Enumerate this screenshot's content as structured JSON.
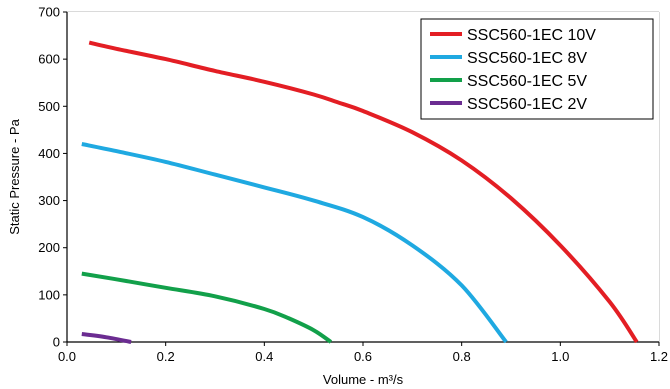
{
  "chart_data": {
    "type": "line",
    "title": "",
    "xlabel": "Volume - m³/s",
    "ylabel": "Static Pressure - Pa",
    "xlim": [
      0,
      1.2
    ],
    "ylim": [
      0,
      700
    ],
    "xticks": [
      "0.0",
      "0.2",
      "0.4",
      "0.6",
      "0.8",
      "1.0",
      "1.2"
    ],
    "yticks": [
      "0",
      "100",
      "200",
      "300",
      "400",
      "500",
      "600",
      "700"
    ],
    "grid": true,
    "legend_position": "top-right",
    "series": [
      {
        "name": "SSC560-1EC 10V",
        "color": "#e31e24",
        "points": [
          [
            0.045,
            635
          ],
          [
            0.1,
            622
          ],
          [
            0.2,
            600
          ],
          [
            0.3,
            575
          ],
          [
            0.4,
            552
          ],
          [
            0.5,
            525
          ],
          [
            0.55,
            508
          ],
          [
            0.6,
            490
          ],
          [
            0.7,
            445
          ],
          [
            0.8,
            385
          ],
          [
            0.9,
            305
          ],
          [
            1.0,
            205
          ],
          [
            1.1,
            85
          ],
          [
            1.155,
            0
          ]
        ]
      },
      {
        "name": "SSC560-1EC 8V",
        "color": "#1fa9e1",
        "points": [
          [
            0.03,
            420
          ],
          [
            0.1,
            405
          ],
          [
            0.2,
            382
          ],
          [
            0.3,
            355
          ],
          [
            0.4,
            328
          ],
          [
            0.5,
            300
          ],
          [
            0.6,
            265
          ],
          [
            0.7,
            205
          ],
          [
            0.8,
            120
          ],
          [
            0.89,
            0
          ]
        ]
      },
      {
        "name": "SSC560-1EC 5V",
        "color": "#12a04a",
        "points": [
          [
            0.03,
            145
          ],
          [
            0.1,
            133
          ],
          [
            0.2,
            115
          ],
          [
            0.3,
            97
          ],
          [
            0.4,
            70
          ],
          [
            0.45,
            50
          ],
          [
            0.5,
            25
          ],
          [
            0.535,
            0
          ]
        ]
      },
      {
        "name": "SSC560-1EC 2V",
        "color": "#6b2c91",
        "points": [
          [
            0.03,
            17
          ],
          [
            0.08,
            10
          ],
          [
            0.13,
            0
          ]
        ]
      }
    ]
  }
}
